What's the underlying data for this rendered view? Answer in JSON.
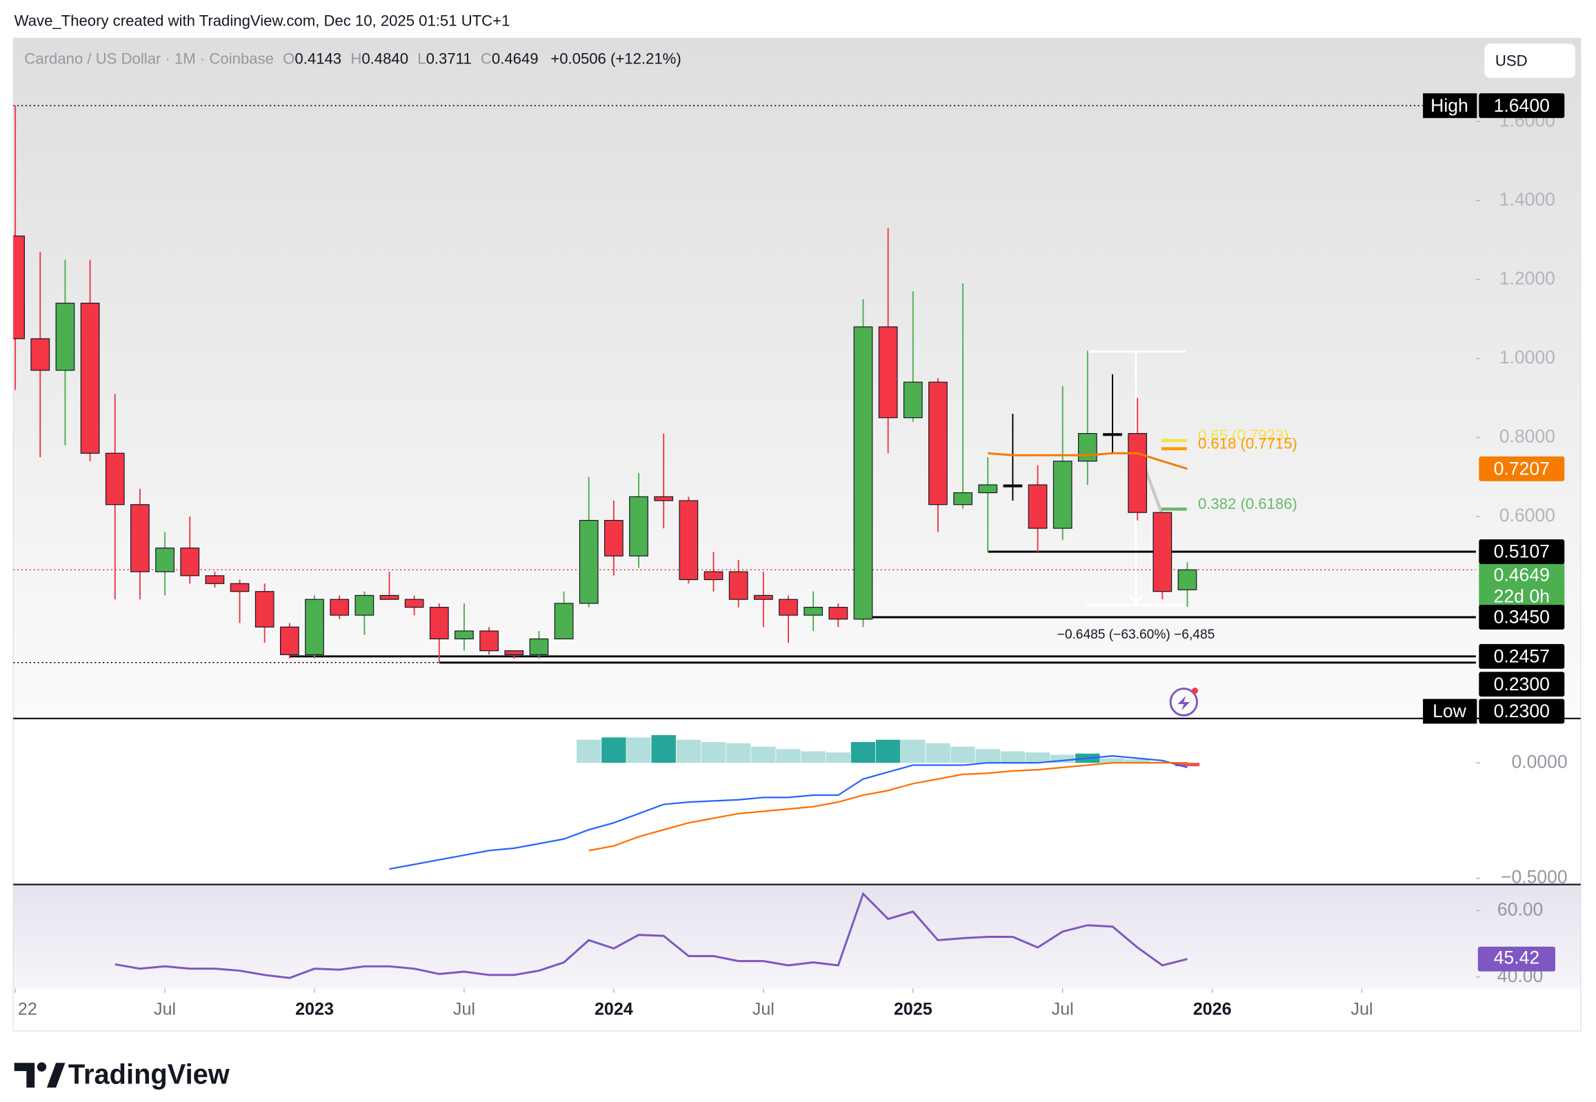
{
  "header": {
    "text": "Wave_Theory created with TradingView.com, Dec 10, 2025 01:51 UTC+1"
  },
  "currency": "USD",
  "brand": "TradingView",
  "chart_data": {
    "type": "candlestick",
    "symbol": "Cardano / US Dollar · 1M · Coinbase",
    "ohlc_legend": [
      {
        "key": "O",
        "value": "0.4143"
      },
      {
        "key": "H",
        "value": "0.4840"
      },
      {
        "key": "L",
        "value": "0.3711"
      },
      {
        "key": "C",
        "value": "0.4649"
      }
    ],
    "change": "+0.0506 (+12.21%)",
    "x": [
      "2022-01",
      "2022-02",
      "2022-03",
      "2022-04",
      "2022-05",
      "2022-06",
      "2022-07",
      "2022-08",
      "2022-09",
      "2022-10",
      "2022-11",
      "2022-12",
      "2023-01",
      "2023-02",
      "2023-03",
      "2023-04",
      "2023-05",
      "2023-06",
      "2023-07",
      "2023-08",
      "2023-09",
      "2023-10",
      "2023-11",
      "2023-12",
      "2024-01",
      "2024-02",
      "2024-03",
      "2024-04",
      "2024-05",
      "2024-06",
      "2024-07",
      "2024-08",
      "2024-09",
      "2024-10",
      "2024-11",
      "2024-12",
      "2025-01",
      "2025-02",
      "2025-03",
      "2025-04",
      "2025-05",
      "2025-06",
      "2025-07",
      "2025-08",
      "2025-09",
      "2025-10",
      "2025-11",
      "2025-12"
    ],
    "open": [
      1.31,
      1.05,
      0.97,
      1.14,
      0.76,
      0.63,
      0.46,
      0.52,
      0.45,
      0.43,
      0.41,
      0.32,
      0.25,
      0.39,
      0.35,
      0.4,
      0.39,
      0.37,
      0.29,
      0.31,
      0.26,
      0.25,
      0.29,
      0.38,
      0.59,
      0.5,
      0.65,
      0.64,
      0.46,
      0.46,
      0.4,
      0.39,
      0.35,
      0.37,
      0.34,
      1.08,
      0.85,
      0.94,
      0.63,
      0.66,
      0.68,
      0.68,
      0.57,
      0.74,
      0.81,
      0.81,
      0.61,
      0.4143
    ],
    "high": [
      1.64,
      1.27,
      1.25,
      1.25,
      0.91,
      0.67,
      0.56,
      0.6,
      0.46,
      0.44,
      0.43,
      0.33,
      0.4,
      0.4,
      0.41,
      0.46,
      0.4,
      0.38,
      0.38,
      0.32,
      0.26,
      0.31,
      0.41,
      0.7,
      0.64,
      0.71,
      0.81,
      0.65,
      0.51,
      0.49,
      0.46,
      0.4,
      0.41,
      0.38,
      1.15,
      1.33,
      1.17,
      0.95,
      1.19,
      0.75,
      0.86,
      0.73,
      0.93,
      1.02,
      0.96,
      0.9,
      0.61,
      0.484
    ],
    "low": [
      0.92,
      0.75,
      0.78,
      0.74,
      0.39,
      0.39,
      0.4,
      0.43,
      0.42,
      0.33,
      0.28,
      0.24,
      0.24,
      0.34,
      0.3,
      0.39,
      0.35,
      0.23,
      0.26,
      0.25,
      0.24,
      0.24,
      0.29,
      0.37,
      0.45,
      0.47,
      0.57,
      0.43,
      0.41,
      0.37,
      0.32,
      0.28,
      0.31,
      0.32,
      0.32,
      0.76,
      0.84,
      0.56,
      0.62,
      0.51,
      0.64,
      0.51,
      0.54,
      0.68,
      0.76,
      0.59,
      0.39,
      0.3711
    ],
    "close": [
      1.05,
      0.97,
      1.14,
      0.76,
      0.63,
      0.46,
      0.52,
      0.45,
      0.43,
      0.41,
      0.32,
      0.25,
      0.39,
      0.35,
      0.4,
      0.39,
      0.37,
      0.29,
      0.31,
      0.26,
      0.25,
      0.29,
      0.38,
      0.59,
      0.5,
      0.65,
      0.64,
      0.44,
      0.44,
      0.39,
      0.39,
      0.35,
      0.37,
      0.34,
      1.08,
      0.85,
      0.94,
      0.63,
      0.66,
      0.68,
      0.68,
      0.57,
      0.74,
      0.81,
      0.81,
      0.61,
      0.41,
      0.4649
    ],
    "up_color": "#4caf50",
    "down_color": "#f23645",
    "ylim": [
      0.091,
      1.811
    ],
    "yticks": [
      {
        "value": 1.6,
        "label": "1.6000"
      },
      {
        "value": 1.4,
        "label": "1.4000"
      },
      {
        "value": 1.2,
        "label": "1.2000"
      },
      {
        "value": 1.0,
        "label": "1.0000"
      },
      {
        "value": 0.8,
        "label": "0.8000"
      },
      {
        "value": 0.6,
        "label": "0.6000"
      }
    ],
    "xticks": [
      {
        "value": "2022-01",
        "label": "22"
      },
      {
        "value": "2022-07",
        "label": "Jul"
      },
      {
        "value": "2023-01",
        "label": "2023"
      },
      {
        "value": "2023-07",
        "label": "Jul"
      },
      {
        "value": "2024-01",
        "label": "2024"
      },
      {
        "value": "2024-07",
        "label": "Jul"
      },
      {
        "value": "2025-01",
        "label": "2025"
      },
      {
        "value": "2025-07",
        "label": "Jul"
      },
      {
        "value": "2026-01",
        "label": "2026"
      },
      {
        "value": "2026-07",
        "label": "Jul"
      }
    ],
    "ema": {
      "color": "#f57c00",
      "values": [
        null,
        null,
        null,
        null,
        null,
        null,
        null,
        null,
        null,
        null,
        null,
        null,
        null,
        null,
        null,
        null,
        null,
        null,
        null,
        null,
        null,
        null,
        null,
        null,
        null,
        null,
        null,
        null,
        null,
        null,
        null,
        null,
        null,
        null,
        null,
        null,
        null,
        null,
        null,
        0.76,
        0.755,
        0.755,
        0.755,
        0.755,
        0.76,
        0.76,
        0.74,
        0.7207
      ]
    },
    "countdown": "22d 0h",
    "price_labels": [
      {
        "value": 1.64,
        "label": "1.6400",
        "tag": "High"
      },
      {
        "value": 0.5107,
        "label": "0.5107",
        "from": "2025-04"
      },
      {
        "value": 0.345,
        "label": "0.3450",
        "from": "2024-11"
      },
      {
        "value": 0.2457,
        "label": "0.2457",
        "from": "2022-12"
      },
      {
        "value": 0.23,
        "label": "0.2300",
        "from": "2023-06"
      },
      {
        "value": 0.23,
        "label": "0.2300",
        "tag": "Low"
      }
    ],
    "fib": [
      {
        "value": 0.7923,
        "label": "0.65 (0.7923)",
        "color": "#f5e04c"
      },
      {
        "value": 0.7715,
        "label": "0.618 (0.7715)",
        "color": "#ff9800"
      },
      {
        "value": 0.6186,
        "label": "0.382 (0.6186)",
        "color": "#66bb6a"
      }
    ],
    "measure": "−0.6485 (−63.60%) −6,485",
    "macd": {
      "ylim": [
        -0.527,
        0.192
      ],
      "yticks": [
        {
          "value": 0,
          "label": "0.0000"
        },
        {
          "value": -0.5,
          "label": "−0.5000"
        }
      ],
      "macd_color": "#2962ff",
      "signal_color": "#ff6d00",
      "macd": [
        null,
        null,
        null,
        null,
        null,
        null,
        null,
        null,
        null,
        null,
        null,
        null,
        null,
        null,
        null,
        -0.46,
        -0.44,
        -0.42,
        -0.4,
        -0.38,
        -0.37,
        -0.35,
        -0.33,
        -0.29,
        -0.26,
        -0.22,
        -0.18,
        -0.17,
        -0.165,
        -0.16,
        -0.15,
        -0.15,
        -0.14,
        -0.14,
        -0.07,
        -0.04,
        -0.01,
        -0.01,
        -0.01,
        0.0,
        0.0,
        0.0,
        0.01,
        0.02,
        0.03,
        0.02,
        0.01,
        -0.02
      ],
      "signal": [
        null,
        null,
        null,
        null,
        null,
        null,
        null,
        null,
        null,
        null,
        null,
        null,
        null,
        null,
        null,
        null,
        null,
        null,
        null,
        null,
        null,
        null,
        null,
        -0.38,
        -0.36,
        -0.32,
        -0.29,
        -0.26,
        -0.24,
        -0.22,
        -0.21,
        -0.2,
        -0.19,
        -0.17,
        -0.14,
        -0.12,
        -0.09,
        -0.07,
        -0.05,
        -0.045,
        -0.035,
        -0.03,
        -0.02,
        -0.01,
        0.0,
        0.0,
        0.0,
        0.0
      ],
      "histogram": [
        null,
        null,
        null,
        null,
        null,
        null,
        null,
        null,
        null,
        null,
        null,
        null,
        null,
        null,
        null,
        null,
        null,
        null,
        null,
        null,
        null,
        null,
        null,
        0.1,
        0.11,
        0.11,
        0.12,
        0.1,
        0.09,
        0.085,
        0.07,
        0.06,
        0.05,
        0.045,
        0.09,
        0.1,
        0.1,
        0.085,
        0.07,
        0.06,
        0.05,
        0.045,
        0.035,
        0.04,
        0.02,
        0.015,
        0.005,
        -0.015
      ]
    },
    "rsi": {
      "ylim": [
        36.8,
        67.9
      ],
      "color": "#7e57c2",
      "yticks": [
        {
          "value": 60,
          "label": "60.00"
        },
        {
          "value": 40,
          "label": "40.00"
        }
      ],
      "values": [
        null,
        null,
        null,
        null,
        43.8,
        42.5,
        43.2,
        42.5,
        42.5,
        41.9,
        40.6,
        39.7,
        42.5,
        42.2,
        43.2,
        43.2,
        42.5,
        40.9,
        41.6,
        40.6,
        40.6,
        41.9,
        44.4,
        51.1,
        48.6,
        52.7,
        52.4,
        46.3,
        46.3,
        44.8,
        44.8,
        43.5,
        44.4,
        43.5,
        65.1,
        57.5,
        59.7,
        51.1,
        51.7,
        52.1,
        52.1,
        48.9,
        53.7,
        55.6,
        55.2,
        48.9,
        43.5,
        45.42
      ]
    }
  }
}
